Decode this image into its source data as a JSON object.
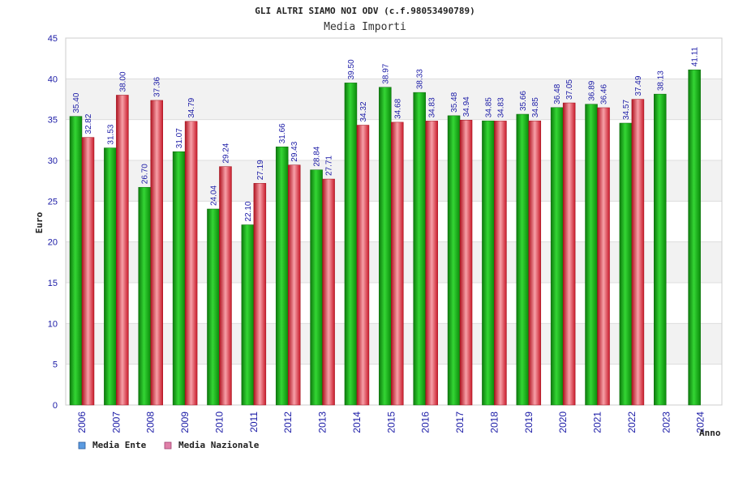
{
  "chart_data": {
    "type": "bar",
    "title": "GLI ALTRI SIAMO NOI ODV (c.f.98053490789)",
    "subtitle": "Media Importi",
    "xlabel": "Anno",
    "ylabel": "Euro",
    "ylim": [
      0,
      45
    ],
    "yticks": [
      0,
      5,
      10,
      15,
      20,
      25,
      30,
      35,
      40,
      45
    ],
    "grid": true,
    "legend_position": "bottom-left",
    "categories": [
      "2006",
      "2007",
      "2008",
      "2009",
      "2010",
      "2011",
      "2012",
      "2013",
      "2014",
      "2015",
      "2016",
      "2017",
      "2018",
      "2019",
      "2020",
      "2021",
      "2022",
      "2023",
      "2024"
    ],
    "series": [
      {
        "name": "Media Ente",
        "color": "#1fb41f",
        "legend_color": "#5b9be0",
        "values": [
          35.4,
          31.53,
          26.7,
          31.07,
          24.04,
          22.1,
          31.66,
          28.84,
          39.5,
          38.97,
          38.33,
          35.48,
          34.85,
          35.66,
          36.48,
          36.89,
          34.57,
          38.13,
          41.11
        ],
        "labels": [
          "35.40",
          "31.53",
          "26.70",
          "31.07",
          "24.04",
          "22.10",
          "31.66",
          "28.84",
          "39.50",
          "38.97",
          "38.33",
          "35.48",
          "34.85",
          "35.66",
          "36.48",
          "36.89",
          "34.57",
          "38.13",
          "41.11"
        ]
      },
      {
        "name": "Media Nazionale",
        "color": "#e8283c",
        "legend_color": "#e080a8",
        "values": [
          32.82,
          38.0,
          37.36,
          34.79,
          29.24,
          27.19,
          29.43,
          27.71,
          34.32,
          34.68,
          34.83,
          34.94,
          34.83,
          34.85,
          37.05,
          36.46,
          37.49,
          null,
          null
        ],
        "labels": [
          "32.82",
          "38.00",
          "37.36",
          "34.79",
          "29.24",
          "27.19",
          "29.43",
          "27.71",
          "34.32",
          "34.68",
          "34.83",
          "34.94",
          "34.83",
          "34.85",
          "37.05",
          "36.46",
          "37.49",
          null,
          null
        ]
      }
    ]
  }
}
